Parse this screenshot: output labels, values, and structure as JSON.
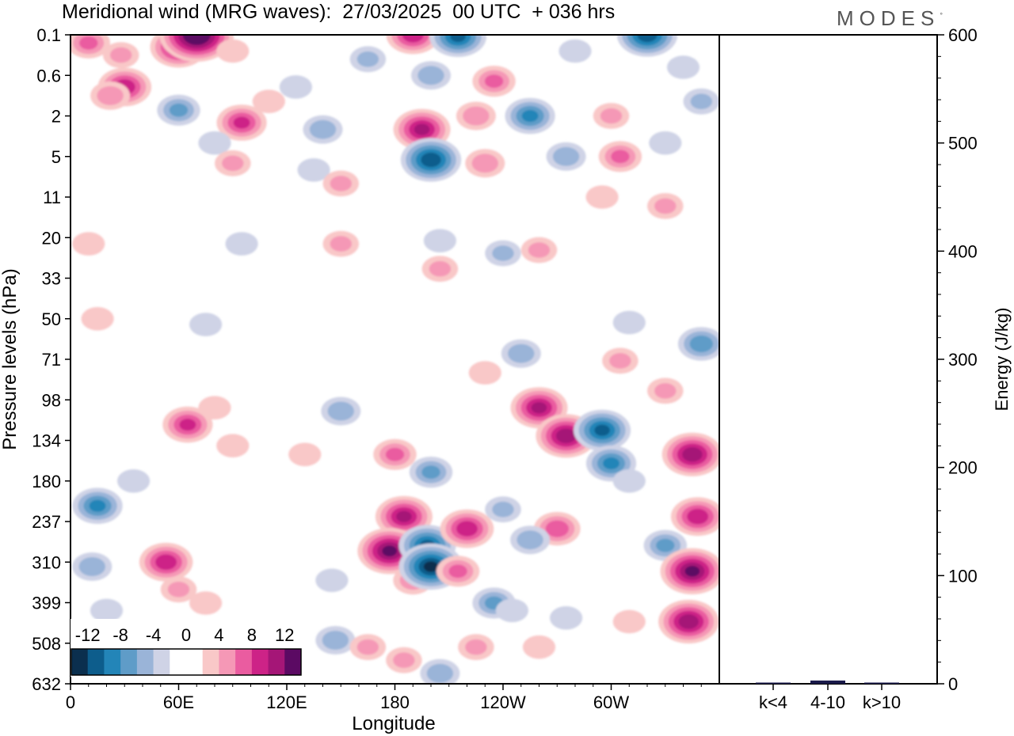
{
  "header": {
    "title": "Meridional wind (MRG waves):  27/03/2025  00 UTC  + 036 hrs",
    "brand": "MODES",
    "brand_mark": "°"
  },
  "colors": {
    "scale": [
      "#0b2f4e",
      "#0d5d8c",
      "#2385b8",
      "#5f9cc8",
      "#9ab4d8",
      "#cfd3e6",
      "#ffffff",
      "#ffffff",
      "#f9c8c8",
      "#f598b6",
      "#ea5ca0",
      "#cd2387",
      "#a51677",
      "#5b0a63"
    ]
  },
  "chart_data": [
    {
      "type": "heatmap",
      "title": "Meridional wind (MRG waves):  27/03/2025  00 UTC  + 036 hrs",
      "xlabel": "Longitude",
      "ylabel": "Pressure levels (hPa)",
      "x_ticks": [
        "0",
        "60E",
        "120E",
        "180",
        "120W",
        "60W"
      ],
      "x_tick_degrees": [
        0,
        60,
        120,
        180,
        240,
        300
      ],
      "xlim": [
        0,
        360
      ],
      "y_ticks": [
        "0.1",
        "0.6",
        "2",
        "5",
        "11",
        "20",
        "33",
        "50",
        "71",
        "98",
        "134",
        "180",
        "237",
        "310",
        "399",
        "508",
        "632"
      ],
      "colorbar": {
        "labels": [
          "-12",
          "-8",
          "-4",
          "0",
          "4",
          "8",
          "12"
        ],
        "levels": [
          -14,
          -12,
          -10,
          -8,
          -6,
          -4,
          -2,
          0,
          2,
          4,
          6,
          8,
          10,
          12,
          14
        ]
      },
      "features": [
        {
          "lon": 10,
          "lev": 0.2,
          "v": 6
        },
        {
          "lon": 28,
          "lev": 0.35,
          "v": 4
        },
        {
          "lon": 60,
          "lev": 0.25,
          "v": 10
        },
        {
          "lon": 70,
          "lev": 0.1,
          "v": 15
        },
        {
          "lon": 90,
          "lev": 0.3,
          "v": 3
        },
        {
          "lon": 30,
          "lev": 1.0,
          "v": 9
        },
        {
          "lon": 22,
          "lev": 1.3,
          "v": 5
        },
        {
          "lon": 60,
          "lev": 1.8,
          "v": -6
        },
        {
          "lon": 95,
          "lev": 2.5,
          "v": 8
        },
        {
          "lon": 110,
          "lev": 1.5,
          "v": 3
        },
        {
          "lon": 80,
          "lev": 4.0,
          "v": -3
        },
        {
          "lon": 90,
          "lev": 6.0,
          "v": 4
        },
        {
          "lon": 125,
          "lev": 1.0,
          "v": -3
        },
        {
          "lon": 140,
          "lev": 3.0,
          "v": -5
        },
        {
          "lon": 135,
          "lev": 7.0,
          "v": -3
        },
        {
          "lon": 150,
          "lev": 9.0,
          "v": 4
        },
        {
          "lon": 165,
          "lev": 0.4,
          "v": -4
        },
        {
          "lon": 190,
          "lev": 0.1,
          "v": 9
        },
        {
          "lon": 215,
          "lev": 0.12,
          "v": -10
        },
        {
          "lon": 200,
          "lev": 0.6,
          "v": -5
        },
        {
          "lon": 235,
          "lev": 0.8,
          "v": 6
        },
        {
          "lon": 195,
          "lev": 3.0,
          "v": 10
        },
        {
          "lon": 225,
          "lev": 2.0,
          "v": 5
        },
        {
          "lon": 200,
          "lev": 5.5,
          "v": -11
        },
        {
          "lon": 230,
          "lev": 6.0,
          "v": 5
        },
        {
          "lon": 255,
          "lev": 2.0,
          "v": -8
        },
        {
          "lon": 280,
          "lev": 0.3,
          "v": -3
        },
        {
          "lon": 320,
          "lev": 0.1,
          "v": -11
        },
        {
          "lon": 340,
          "lev": 0.5,
          "v": -3
        },
        {
          "lon": 300,
          "lev": 2.0,
          "v": 4
        },
        {
          "lon": 350,
          "lev": 1.5,
          "v": -4
        },
        {
          "lon": 275,
          "lev": 5.0,
          "v": -5
        },
        {
          "lon": 305,
          "lev": 5.0,
          "v": 6
        },
        {
          "lon": 330,
          "lev": 4.0,
          "v": -3
        },
        {
          "lon": 295,
          "lev": 11.0,
          "v": 3
        },
        {
          "lon": 330,
          "lev": 13.0,
          "v": 4
        },
        {
          "lon": 10,
          "lev": 22.0,
          "v": 3
        },
        {
          "lon": 95,
          "lev": 22.0,
          "v": -3
        },
        {
          "lon": 150,
          "lev": 22.0,
          "v": 4
        },
        {
          "lon": 205,
          "lev": 21.0,
          "v": -3
        },
        {
          "lon": 240,
          "lev": 25.0,
          "v": -4
        },
        {
          "lon": 260,
          "lev": 24.0,
          "v": 4
        },
        {
          "lon": 205,
          "lev": 30.0,
          "v": 4
        },
        {
          "lon": 15,
          "lev": 50.0,
          "v": 3
        },
        {
          "lon": 75,
          "lev": 53.0,
          "v": -3
        },
        {
          "lon": 310,
          "lev": 52.0,
          "v": -3
        },
        {
          "lon": 350,
          "lev": 63.0,
          "v": -7
        },
        {
          "lon": 305,
          "lev": 72.0,
          "v": 4
        },
        {
          "lon": 330,
          "lev": 92.0,
          "v": 4
        },
        {
          "lon": 250,
          "lev": 68.0,
          "v": -5
        },
        {
          "lon": 230,
          "lev": 80.0,
          "v": 3
        },
        {
          "lon": 80,
          "lev": 105.0,
          "v": 3
        },
        {
          "lon": 65,
          "lev": 120.0,
          "v": 8
        },
        {
          "lon": 90,
          "lev": 140.0,
          "v": 3
        },
        {
          "lon": 150,
          "lev": 108.0,
          "v": -5
        },
        {
          "lon": 130,
          "lev": 150.0,
          "v": 3
        },
        {
          "lon": 180,
          "lev": 150.0,
          "v": 6
        },
        {
          "lon": 185,
          "lev": 230.0,
          "v": 10
        },
        {
          "lon": 177,
          "lev": 290.0,
          "v": 12
        },
        {
          "lon": 190,
          "lev": 350.0,
          "v": 5
        },
        {
          "lon": 200,
          "lev": 170.0,
          "v": -6
        },
        {
          "lon": 198,
          "lev": 280.0,
          "v": -10
        },
        {
          "lon": 200,
          "lev": 320.0,
          "v": -12
        },
        {
          "lon": 220,
          "lev": 250.0,
          "v": 9
        },
        {
          "lon": 215,
          "lev": 330.0,
          "v": 6
        },
        {
          "lon": 240,
          "lev": 220.0,
          "v": -4
        },
        {
          "lon": 235,
          "lev": 400.0,
          "v": -6
        },
        {
          "lon": 260,
          "lev": 105.0,
          "v": 10
        },
        {
          "lon": 275,
          "lev": 130.0,
          "v": 11
        },
        {
          "lon": 270,
          "lev": 250.0,
          "v": 7
        },
        {
          "lon": 255,
          "lev": 270.0,
          "v": -5
        },
        {
          "lon": 295,
          "lev": 125.0,
          "v": -10
        },
        {
          "lon": 300,
          "lev": 160.0,
          "v": -8
        },
        {
          "lon": 310,
          "lev": 180.0,
          "v": -3
        },
        {
          "lon": 330,
          "lev": 280.0,
          "v": -6
        },
        {
          "lon": 345,
          "lev": 150.0,
          "v": 11
        },
        {
          "lon": 348,
          "lev": 230.0,
          "v": 9
        },
        {
          "lon": 345,
          "lev": 330.0,
          "v": 12
        },
        {
          "lon": 343,
          "lev": 450.0,
          "v": 11
        },
        {
          "lon": 15,
          "lev": 215.0,
          "v": -8
        },
        {
          "lon": 12,
          "lev": 320.0,
          "v": -5
        },
        {
          "lon": 20,
          "lev": 420.0,
          "v": -3
        },
        {
          "lon": 35,
          "lev": 180.0,
          "v": -3
        },
        {
          "lon": 53,
          "lev": 310.0,
          "v": 9
        },
        {
          "lon": 60,
          "lev": 370.0,
          "v": 4
        },
        {
          "lon": 75,
          "lev": 400.0,
          "v": 3
        },
        {
          "lon": 145,
          "lev": 350.0,
          "v": -3
        },
        {
          "lon": 147,
          "lev": 500.0,
          "v": -5
        },
        {
          "lon": 165,
          "lev": 520.0,
          "v": 4
        },
        {
          "lon": 185,
          "lev": 560.0,
          "v": 4
        },
        {
          "lon": 205,
          "lev": 600.0,
          "v": -5
        },
        {
          "lon": 225,
          "lev": 520.0,
          "v": 4
        },
        {
          "lon": 245,
          "lev": 420.0,
          "v": -3
        },
        {
          "lon": 260,
          "lev": 520.0,
          "v": 3
        },
        {
          "lon": 275,
          "lev": 440.0,
          "v": -3
        },
        {
          "lon": 310,
          "lev": 450.0,
          "v": 3
        }
      ]
    },
    {
      "type": "bar",
      "ylabel": "Energy (J/kg)",
      "categories": [
        "k<4",
        "4-10",
        "k>10"
      ],
      "values": [
        0.5,
        3,
        0.3
      ],
      "ylim": [
        0,
        600
      ],
      "y_ticks": [
        "0",
        "100",
        "200",
        "300",
        "400",
        "500",
        "600"
      ]
    }
  ]
}
